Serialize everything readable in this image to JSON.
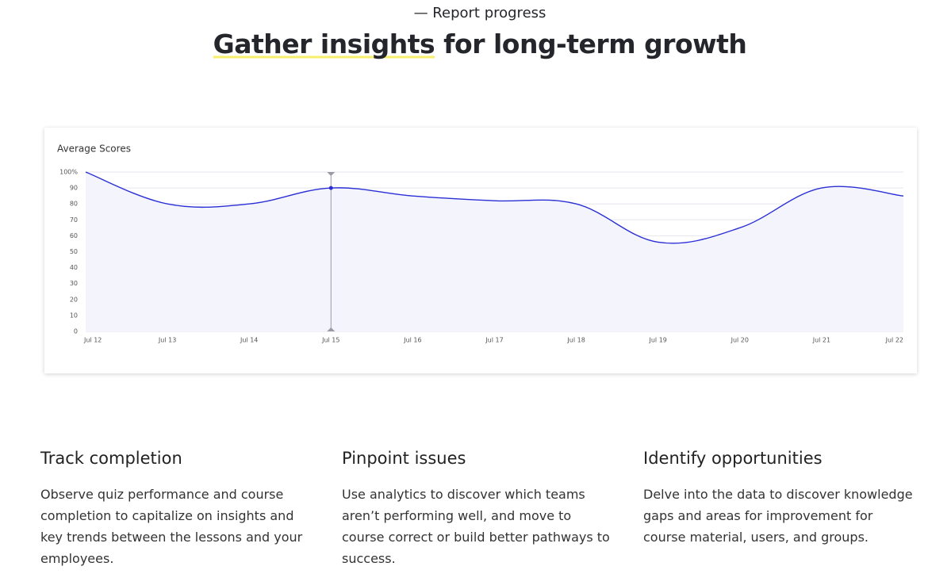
{
  "header": {
    "eyebrow": "— Report progress",
    "title_highlight": "Gather insights",
    "title_rest": "for long-term growth"
  },
  "chart_data": {
    "type": "line",
    "title": "Average Scores",
    "categories": [
      "Jul 12",
      "Jul 13",
      "Jul 14",
      "Jul 15",
      "Jul 16",
      "Jul 17",
      "Jul 18",
      "Jul 19",
      "Jul 20",
      "Jul 21",
      "Jul 22"
    ],
    "series": [
      {
        "name": "Average Scores",
        "color": "#2a2fd6",
        "values": [
          100,
          80,
          80,
          90,
          85,
          82,
          80,
          56,
          65,
          90,
          85
        ]
      }
    ],
    "ylim": [
      0,
      100
    ],
    "yticks": [
      0,
      10,
      20,
      30,
      40,
      50,
      60,
      70,
      80,
      90,
      {
        "value": 100,
        "label": "100%"
      }
    ],
    "grid": true
  },
  "features": [
    {
      "title": "Track completion",
      "text": "Observe quiz performance and course completion to capitalize on insights and key trends between the lessons and your employees."
    },
    {
      "title": "Pinpoint issues",
      "text": "Use analytics to discover which teams aren’t performing well, and move to course correct or build better pathways to success."
    },
    {
      "title": "Identify opportunities",
      "text": "Delve into the data to discover knowledge gaps and areas for improvement for course material, users, and groups."
    }
  ]
}
